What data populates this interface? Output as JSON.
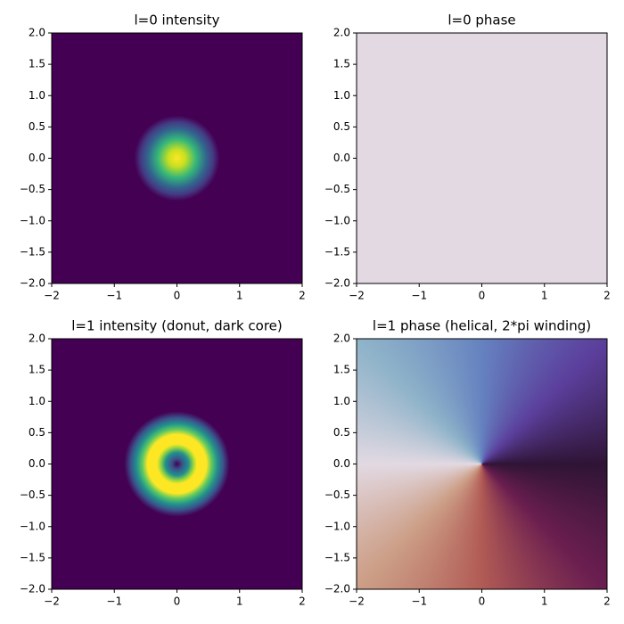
{
  "chart_data": [
    {
      "type": "heatmap",
      "title": "l=0 intensity",
      "colormap": "viridis",
      "xlim": [
        -2,
        2
      ],
      "ylim": [
        -2,
        2
      ],
      "xticks": [
        {
          "value": -2,
          "label": "−2"
        },
        {
          "value": -1,
          "label": "−1"
        },
        0,
        1,
        2
      ],
      "yticks": [
        {
          "value": 2,
          "label": "2.0"
        },
        1.5,
        {
          "value": 1,
          "label": "1.0"
        },
        0.5,
        {
          "value": 0,
          "label": "0.0"
        },
        {
          "value": -0.5,
          "label": "−0.5"
        },
        {
          "value": -1,
          "label": "−1.0"
        },
        {
          "value": -1.5,
          "label": "−1.5"
        },
        {
          "value": -2,
          "label": "−2.0"
        }
      ]
    },
    {
      "type": "heatmap",
      "title": "l=0 phase",
      "colormap": "twilight",
      "xlim": [
        -2,
        2
      ],
      "ylim": [
        -2,
        2
      ],
      "xticks": [
        {
          "value": -2,
          "label": "−2"
        },
        {
          "value": -1,
          "label": "−1"
        },
        0,
        1,
        2
      ],
      "yticks": [
        {
          "value": 2,
          "label": "2.0"
        },
        1.5,
        {
          "value": 1,
          "label": "1.0"
        },
        0.5,
        {
          "value": 0,
          "label": "0.0"
        },
        {
          "value": -0.5,
          "label": "−0.5"
        },
        {
          "value": -1,
          "label": "−1.0"
        },
        {
          "value": -1.5,
          "label": "−1.5"
        },
        {
          "value": -2,
          "label": "−2.0"
        }
      ]
    },
    {
      "type": "heatmap",
      "title": "l=1 intensity (donut, dark core)",
      "colormap": "viridis",
      "xlim": [
        -2,
        2
      ],
      "ylim": [
        -2,
        2
      ],
      "xticks": [
        {
          "value": -2,
          "label": "−2"
        },
        {
          "value": -1,
          "label": "−1"
        },
        0,
        1,
        2
      ],
      "yticks": [
        {
          "value": 2,
          "label": "2.0"
        },
        1.5,
        {
          "value": 1,
          "label": "1.0"
        },
        0.5,
        {
          "value": 0,
          "label": "0.0"
        },
        {
          "value": -0.5,
          "label": "−0.5"
        },
        {
          "value": -1,
          "label": "−1.0"
        },
        {
          "value": -1.5,
          "label": "−1.5"
        },
        {
          "value": -2,
          "label": "−2.0"
        }
      ]
    },
    {
      "type": "heatmap",
      "title": "l=1 phase (helical, 2*pi winding)",
      "colormap": "twilight",
      "xlim": [
        -2,
        2
      ],
      "ylim": [
        -2,
        2
      ],
      "xticks": [
        {
          "value": -2,
          "label": "−2"
        },
        {
          "value": -1,
          "label": "−1"
        },
        0,
        1,
        2
      ],
      "yticks": [
        {
          "value": 2,
          "label": "2.0"
        },
        1.5,
        {
          "value": 1,
          "label": "1.0"
        },
        0.5,
        {
          "value": 0,
          "label": "0.0"
        },
        {
          "value": -0.5,
          "label": "−0.5"
        },
        {
          "value": -1,
          "label": "−1.0"
        },
        {
          "value": -1.5,
          "label": "−1.5"
        },
        {
          "value": -2,
          "label": "−2.0"
        }
      ]
    }
  ]
}
